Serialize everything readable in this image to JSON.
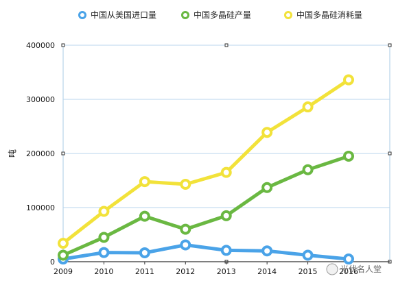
{
  "chart_data": {
    "type": "line",
    "title": "",
    "xlabel": "",
    "ylabel": "吨",
    "x": [
      2009,
      2010,
      2011,
      2012,
      2013,
      2014,
      2015,
      2016
    ],
    "x_tick_labels": [
      "2009",
      "2010",
      "2011",
      "2012",
      "2013",
      "2014",
      "2015",
      "2016"
    ],
    "ylim": [
      0,
      400000
    ],
    "y_ticks": [
      0,
      100000,
      200000,
      300000,
      400000
    ],
    "y_tick_labels": [
      "0",
      "100000",
      "200000",
      "300000",
      "400000"
    ],
    "grid": true,
    "legend_position": "top",
    "series": [
      {
        "name": "中国从美国进口量",
        "color": "#4aa3e8",
        "values": [
          5000,
          17000,
          16500,
          31000,
          21000,
          20000,
          12000,
          5000
        ]
      },
      {
        "name": "中国多晶硅产量",
        "color": "#6ab842",
        "values": [
          12000,
          45000,
          84000,
          60000,
          85000,
          137000,
          170000,
          195000
        ]
      },
      {
        "name": "中国多晶硅消耗量",
        "color": "#f2e23a",
        "values": [
          34000,
          93000,
          148000,
          143000,
          165000,
          239000,
          286000,
          336000
        ]
      }
    ]
  },
  "watermark": {
    "text": "光伏名人堂"
  }
}
